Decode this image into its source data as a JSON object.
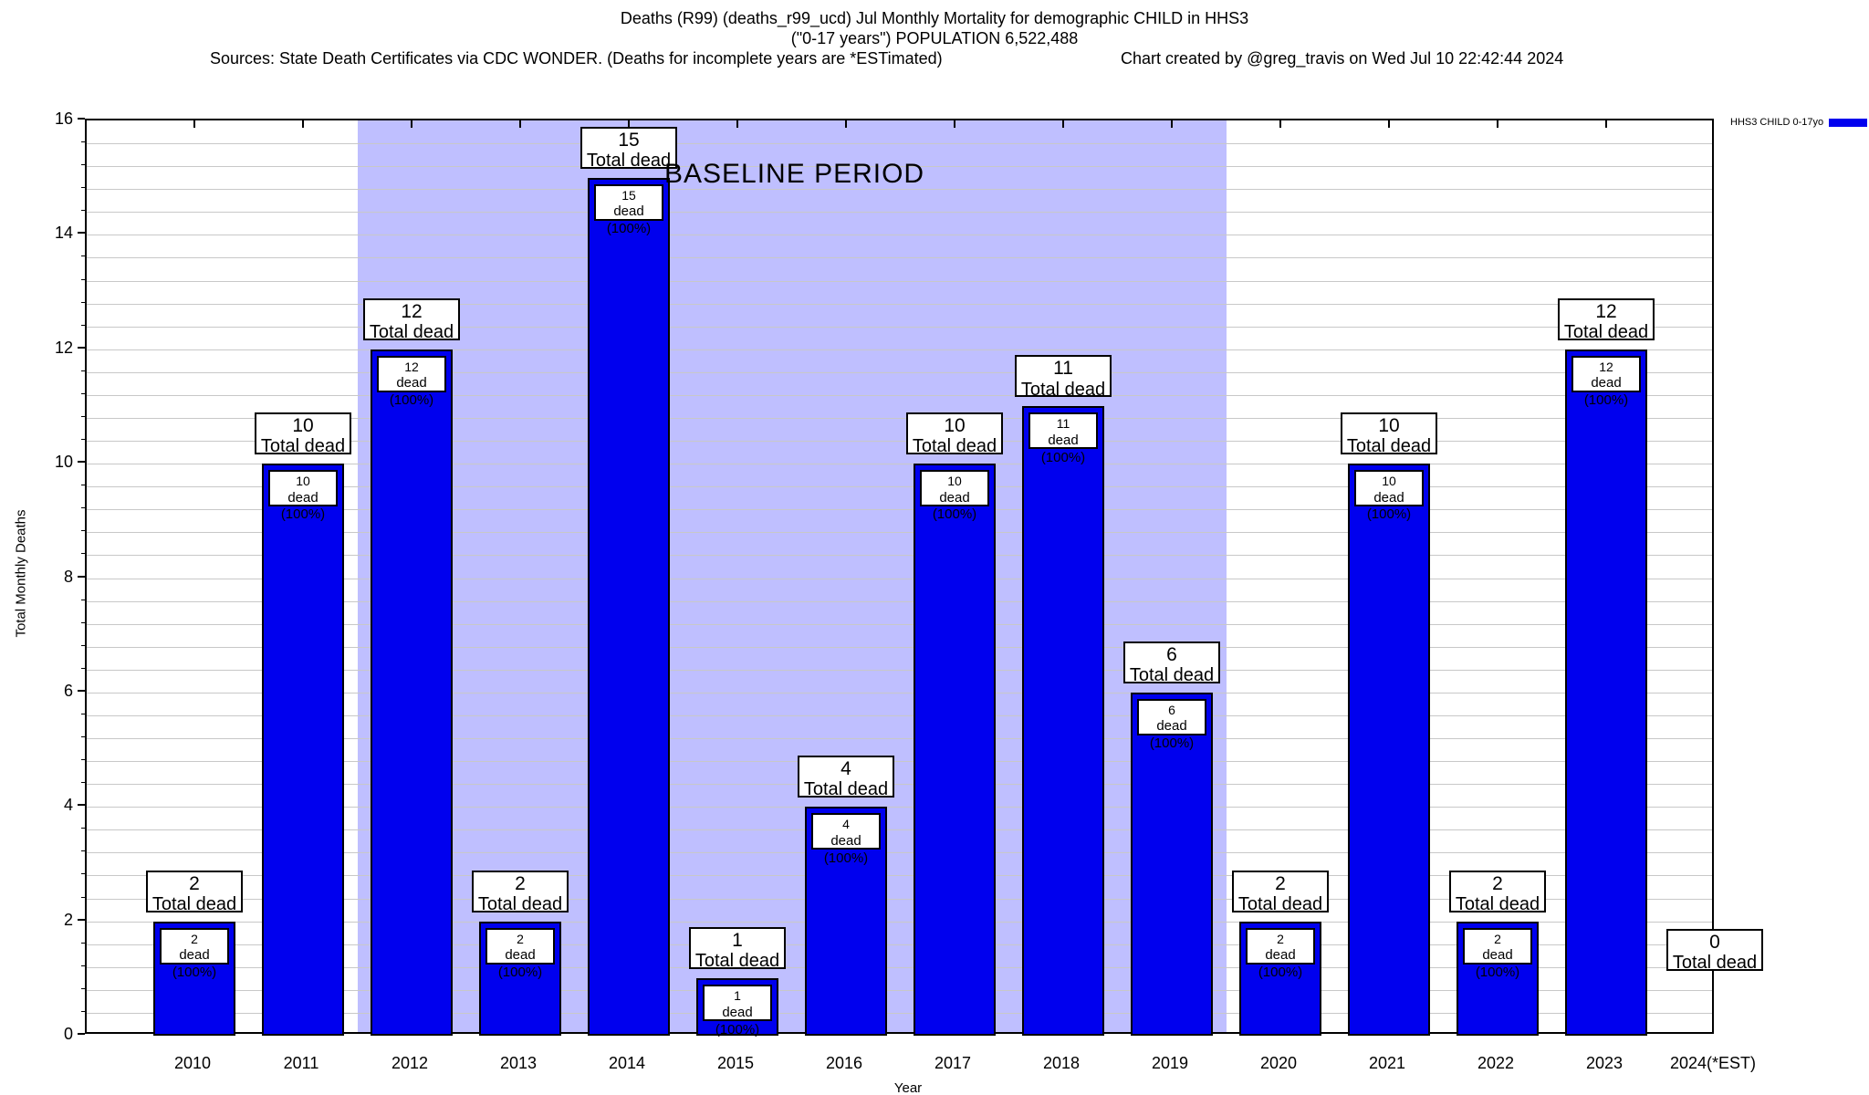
{
  "header": {
    "title_line1": "Deaths (R99) (deaths_r99_ucd) Jul Monthly Mortality for demographic CHILD in HHS3",
    "title_line2": "(\"0-17 years\") POPULATION 6,522,488",
    "sources": "Sources: State Death Certificates via CDC WONDER. (Deaths for incomplete years are *ESTimated)",
    "credit": "Chart created by @greg_travis on Wed Jul 10 22:42:44 2024"
  },
  "legend": {
    "label": "HHS3 CHILD 0-17yo",
    "color": "#0000ee"
  },
  "chart_data": {
    "type": "bar",
    "title": "Deaths (R99) (deaths_r99_ucd) Jul Monthly Mortality for demographic CHILD in HHS3",
    "subtitle": "(\"0-17 years\") POPULATION 6,522,488",
    "categories": [
      "2010",
      "2011",
      "2012",
      "2013",
      "2014",
      "2015",
      "2016",
      "2017",
      "2018",
      "2019",
      "2020",
      "2021",
      "2022",
      "2023",
      "2024(*EST)"
    ],
    "values": [
      2,
      10,
      12,
      2,
      15,
      1,
      4,
      10,
      11,
      6,
      2,
      10,
      2,
      12,
      0
    ],
    "series_name": "HHS3 CHILD 0-17yo",
    "bar_total_label": "Total dead",
    "bar_inner_label": "dead (100%)",
    "xlabel": "Year",
    "ylabel": "Total Monthly Deaths",
    "ylim": [
      0,
      16
    ],
    "ytick_interval": 2,
    "ytick_labels": [
      "0",
      "2",
      "4",
      "6",
      "8",
      "10",
      "12",
      "14",
      "16"
    ],
    "minor_grid_interval": 0.4,
    "grid": true,
    "legend_position": "top-right",
    "bar_color": "#0000ee",
    "bar_border_color": "#000000",
    "baseline_region": {
      "label": "BASELINE PERIOD",
      "from_category": "2012",
      "to_category": "2019",
      "color": "#bfbfff"
    }
  }
}
